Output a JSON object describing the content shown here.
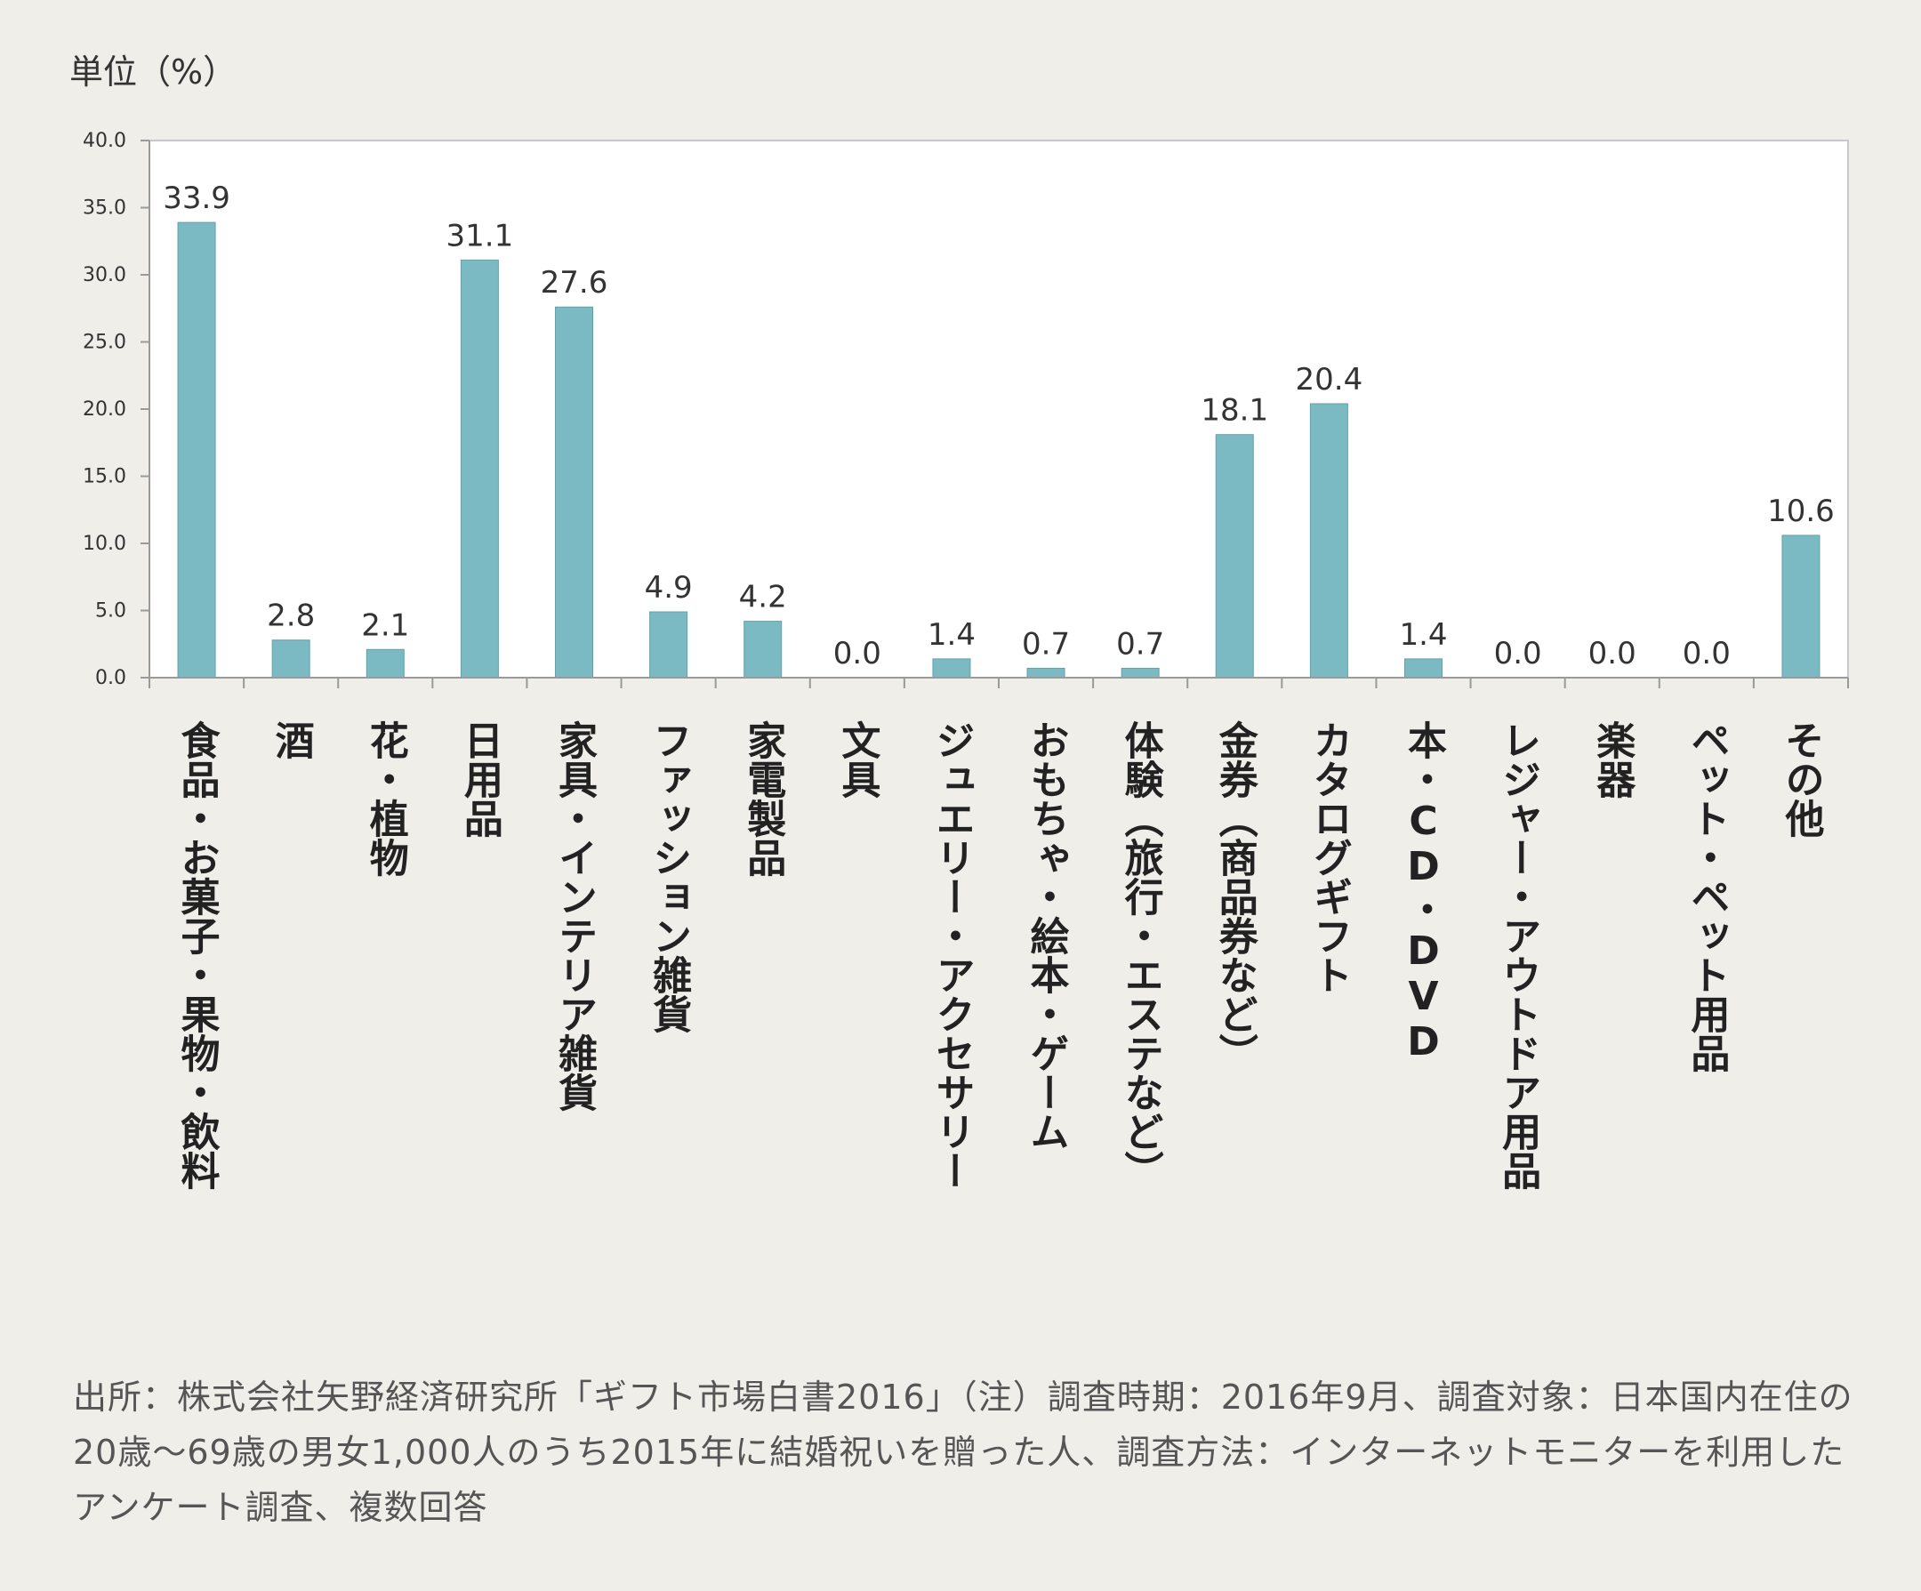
{
  "unit_label": "単位（%）",
  "source_note": "出所：株式会社矢野経済研究所「ギフト市場白書2016」（注）調査時期：2016年9月、調査対象：日本国内在住の20歳〜69歳の男女1,000人のうち2015年に結婚祝いを贈った人、調査方法：インターネットモニターを利用したアンケート調査、複数回答",
  "colors": {
    "bar": "#7bbac3",
    "bar_edge": "#5fa3ad",
    "plot_bg": "#ffffff",
    "axis": "#9a9a9a",
    "text": "#333333"
  },
  "chart_data": {
    "type": "bar",
    "title": "",
    "xlabel": "",
    "ylabel": "単位（%）",
    "ylim": [
      0,
      40
    ],
    "y_ticks": [
      "0.0",
      "5.0",
      "10.0",
      "15.0",
      "20.0",
      "25.0",
      "30.0",
      "35.0",
      "40.0"
    ],
    "grid": false,
    "categories": [
      "食品・お菓子・果物・飲料",
      "酒",
      "花・植物",
      "日用品",
      "家具・インテリア雑貨",
      "ファッション雑貨",
      "家電製品",
      "文具",
      "ジュエリー・アクセサリー",
      "おもちゃ・絵本・ゲーム",
      "体験（旅行・エステなど）",
      "金券（商品券など）",
      "カタログギフト",
      "本・CD・DVD",
      "レジャー・アウトドア用品",
      "楽器",
      "ペット・ペット用品",
      "その他"
    ],
    "values": [
      33.9,
      2.8,
      2.1,
      31.1,
      27.6,
      4.9,
      4.2,
      0.0,
      1.4,
      0.7,
      0.7,
      18.1,
      20.4,
      1.4,
      0.0,
      0.0,
      0.0,
      10.6
    ],
    "value_labels": [
      "33.9",
      "2.8",
      "2.1",
      "31.1",
      "27.6",
      "4.9",
      "4.2",
      "0.0",
      "1.4",
      "0.7",
      "0.7",
      "18.1",
      "20.4",
      "1.4",
      "0.0",
      "0.0",
      "0.0",
      "10.6"
    ]
  }
}
